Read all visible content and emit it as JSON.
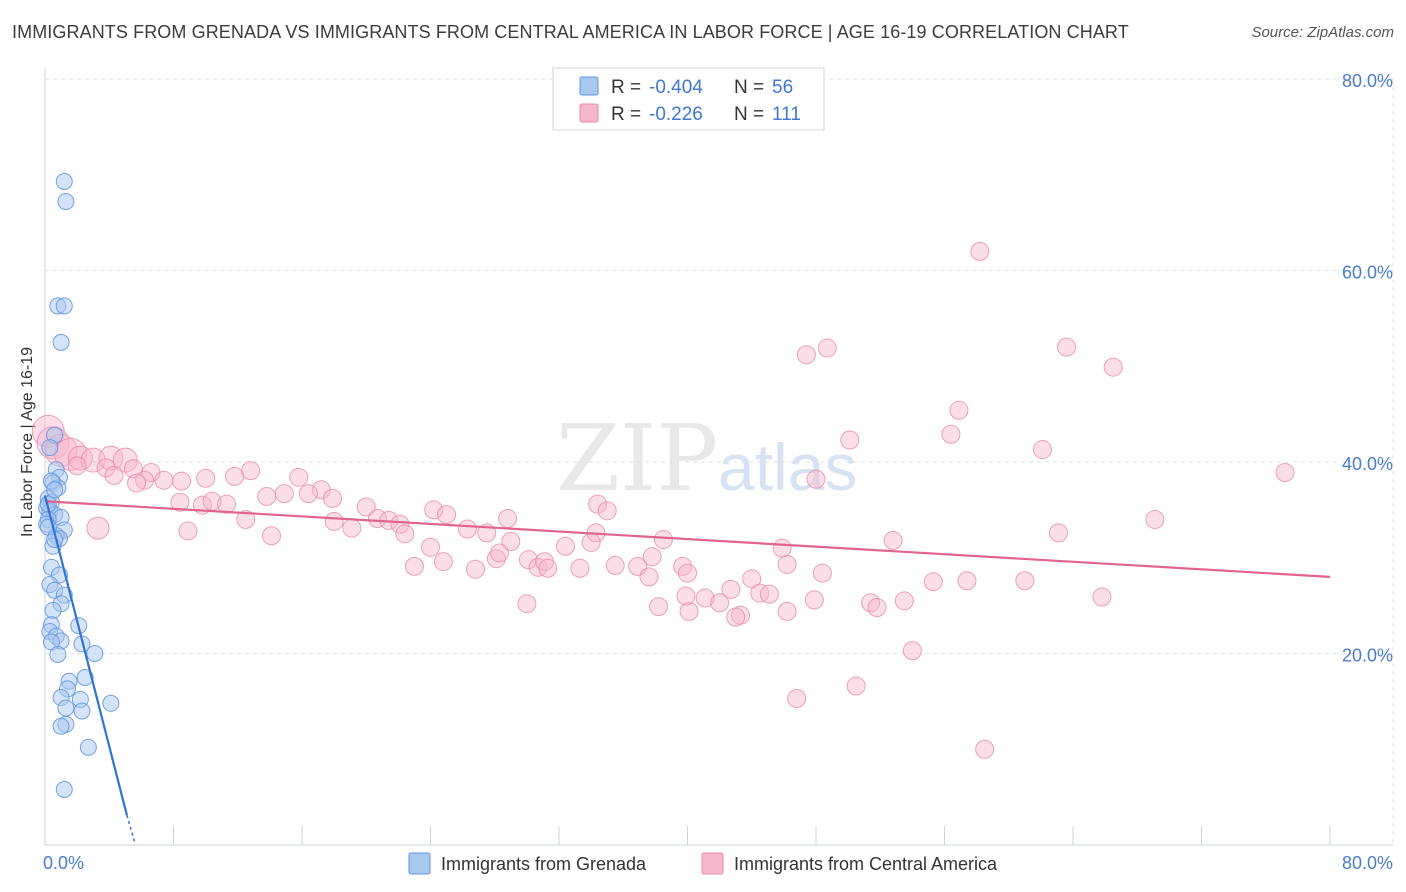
{
  "title": "IMMIGRANTS FROM GRENADA VS IMMIGRANTS FROM CENTRAL AMERICA IN LABOR FORCE | AGE 16-19 CORRELATION CHART",
  "source": "Source: ZipAtlas.com",
  "watermark": {
    "zip": "ZIP",
    "atlas": "atlas"
  },
  "colors": {
    "blue": "#a9c8f0",
    "blue_stroke": "#5d94dc",
    "blue_line": "#2f73d4",
    "pink": "#f6b6cb",
    "pink_stroke": "#e98aab",
    "pink_line": "#e0648f",
    "tick_text": "#4a7ccc",
    "grid": "#dde3ec"
  },
  "legend": {
    "items": [
      {
        "r_label": "R =",
        "r_value": "-0.404",
        "n_label": "N =",
        "n_value": "56"
      },
      {
        "r_label": "R =",
        "r_value": "-0.226",
        "n_label": "N =",
        "n_value": "111"
      }
    ]
  },
  "bottom_legend": [
    "Immigrants from Grenada",
    "Immigrants from Central America"
  ],
  "chart_data": {
    "type": "scatter",
    "title": "IMMIGRANTS FROM GRENADA VS IMMIGRANTS FROM CENTRAL AMERICA IN LABOR FORCE | AGE 16-19 CORRELATION CHART",
    "xlabel": "",
    "ylabel": "In Labor Force | Age 16-19",
    "xlim": [
      0,
      80
    ],
    "ylim": [
      0,
      80
    ],
    "x_tick_labels": [
      "0.0%",
      "80.0%"
    ],
    "y_ticks": [
      20,
      40,
      60,
      80
    ],
    "y_tick_labels": [
      "20.0%",
      "40.0%",
      "60.0%",
      "80.0%"
    ],
    "series": [
      {
        "name": "Immigrants from Grenada",
        "R": -0.404,
        "N": 56,
        "trend": {
          "x": [
            0,
            5.1
          ],
          "y": [
            36.5,
            3.1
          ],
          "dash_x": [
            5.1,
            5.6
          ],
          "dash_y": [
            3.1,
            0.2
          ]
        },
        "points": [
          [
            1.2,
            69.3
          ],
          [
            1.3,
            67.2
          ],
          [
            0.8,
            56.3
          ],
          [
            1.2,
            56.3
          ],
          [
            1.0,
            52.5
          ],
          [
            0.6,
            42.8
          ],
          [
            0.3,
            41.5
          ],
          [
            0.7,
            39.2
          ],
          [
            0.9,
            38.4
          ],
          [
            0.5,
            37.8
          ],
          [
            0.8,
            37.3
          ],
          [
            0.2,
            36.2
          ],
          [
            0.4,
            35.8
          ],
          [
            0.1,
            35.2
          ],
          [
            0.3,
            34.8
          ],
          [
            0.6,
            34.5
          ],
          [
            1.0,
            34.2
          ],
          [
            0.2,
            34.0
          ],
          [
            0.1,
            33.5
          ],
          [
            1.2,
            32.9
          ],
          [
            0.7,
            32.3
          ],
          [
            0.9,
            32.0
          ],
          [
            0.5,
            31.2
          ],
          [
            0.4,
            29.0
          ],
          [
            0.9,
            28.2
          ],
          [
            0.3,
            27.2
          ],
          [
            0.6,
            26.6
          ],
          [
            1.2,
            26.1
          ],
          [
            1.0,
            25.2
          ],
          [
            0.5,
            24.5
          ],
          [
            0.4,
            23.0
          ],
          [
            2.1,
            22.9
          ],
          [
            0.3,
            22.3
          ],
          [
            0.7,
            21.8
          ],
          [
            1.0,
            21.3
          ],
          [
            0.4,
            21.2
          ],
          [
            2.3,
            21.0
          ],
          [
            0.8,
            19.9
          ],
          [
            3.1,
            20.0
          ],
          [
            2.5,
            17.5
          ],
          [
            1.5,
            17.1
          ],
          [
            1.4,
            16.3
          ],
          [
            1.0,
            15.4
          ],
          [
            2.2,
            15.2
          ],
          [
            4.1,
            14.8
          ],
          [
            1.3,
            14.3
          ],
          [
            2.3,
            14.0
          ],
          [
            1.3,
            12.6
          ],
          [
            1.0,
            12.4
          ],
          [
            2.7,
            10.2
          ],
          [
            1.2,
            5.8
          ],
          [
            0.2,
            35.6
          ],
          [
            0.4,
            38.0
          ],
          [
            0.6,
            37.1
          ],
          [
            0.2,
            33.2
          ],
          [
            0.6,
            31.9
          ]
        ]
      },
      {
        "name": "Immigrants from Central America",
        "R": -0.226,
        "N": 111,
        "trend": {
          "x": [
            0,
            80
          ],
          "y": [
            35.9,
            28.0
          ]
        },
        "points": [
          [
            0.2,
            43.2
          ],
          [
            0.5,
            42.0
          ],
          [
            1.0,
            41.2
          ],
          [
            1.6,
            40.8
          ],
          [
            2.2,
            40.4
          ],
          [
            3.0,
            40.2
          ],
          [
            4.1,
            40.4
          ],
          [
            5.0,
            40.2
          ],
          [
            2.0,
            39.6
          ],
          [
            3.8,
            39.4
          ],
          [
            5.5,
            39.3
          ],
          [
            6.6,
            38.9
          ],
          [
            4.3,
            38.6
          ],
          [
            6.2,
            38.1
          ],
          [
            5.7,
            37.8
          ],
          [
            7.4,
            38.1
          ],
          [
            8.5,
            38.0
          ],
          [
            10.0,
            38.3
          ],
          [
            11.8,
            38.5
          ],
          [
            12.8,
            39.1
          ],
          [
            15.8,
            38.4
          ],
          [
            17.2,
            37.1
          ],
          [
            14.9,
            36.7
          ],
          [
            13.8,
            36.4
          ],
          [
            8.4,
            35.8
          ],
          [
            9.8,
            35.5
          ],
          [
            10.4,
            35.9
          ],
          [
            11.3,
            35.6
          ],
          [
            16.4,
            36.7
          ],
          [
            17.9,
            36.2
          ],
          [
            18.0,
            33.8
          ],
          [
            12.5,
            34.0
          ],
          [
            14.1,
            32.3
          ],
          [
            8.9,
            32.8
          ],
          [
            20.0,
            35.3
          ],
          [
            19.1,
            33.1
          ],
          [
            20.7,
            34.1
          ],
          [
            21.4,
            33.9
          ],
          [
            22.1,
            33.5
          ],
          [
            22.4,
            32.5
          ],
          [
            24.2,
            35.0
          ],
          [
            25.0,
            34.5
          ],
          [
            26.3,
            33.0
          ],
          [
            24.0,
            31.1
          ],
          [
            27.5,
            32.6
          ],
          [
            28.8,
            34.1
          ],
          [
            29.0,
            31.7
          ],
          [
            23.0,
            29.1
          ],
          [
            24.8,
            29.6
          ],
          [
            26.8,
            28.8
          ],
          [
            28.1,
            29.9
          ],
          [
            28.3,
            30.5
          ],
          [
            30.1,
            29.8
          ],
          [
            30.7,
            29.0
          ],
          [
            31.1,
            29.6
          ],
          [
            31.3,
            28.9
          ],
          [
            32.4,
            31.2
          ],
          [
            33.3,
            28.9
          ],
          [
            34.3,
            32.6
          ],
          [
            34.4,
            35.6
          ],
          [
            35.0,
            34.9
          ],
          [
            30.0,
            25.2
          ],
          [
            34.0,
            31.6
          ],
          [
            35.5,
            29.2
          ],
          [
            36.9,
            29.1
          ],
          [
            37.6,
            28.0
          ],
          [
            37.8,
            30.1
          ],
          [
            38.5,
            31.9
          ],
          [
            39.7,
            29.1
          ],
          [
            40.1,
            24.4
          ],
          [
            39.9,
            26.0
          ],
          [
            40.0,
            28.4
          ],
          [
            38.2,
            24.9
          ],
          [
            41.1,
            25.8
          ],
          [
            42.0,
            25.3
          ],
          [
            42.7,
            26.7
          ],
          [
            43.3,
            24.0
          ],
          [
            44.0,
            27.8
          ],
          [
            44.5,
            26.3
          ],
          [
            43.0,
            23.8
          ],
          [
            45.1,
            26.2
          ],
          [
            45.9,
            31.0
          ],
          [
            46.2,
            29.3
          ],
          [
            47.9,
            25.6
          ],
          [
            48.4,
            28.4
          ],
          [
            47.4,
            51.2
          ],
          [
            48.7,
            51.9
          ],
          [
            48.0,
            38.2
          ],
          [
            50.1,
            42.3
          ],
          [
            51.4,
            25.3
          ],
          [
            51.8,
            24.8
          ],
          [
            52.8,
            31.8
          ],
          [
            53.5,
            25.5
          ],
          [
            54.0,
            20.3
          ],
          [
            55.3,
            27.5
          ],
          [
            56.4,
            42.9
          ],
          [
            56.9,
            45.4
          ],
          [
            57.4,
            27.6
          ],
          [
            58.2,
            62.0
          ],
          [
            61.0,
            27.6
          ],
          [
            62.1,
            41.3
          ],
          [
            63.1,
            32.6
          ],
          [
            63.6,
            52.0
          ],
          [
            66.5,
            49.9
          ],
          [
            65.8,
            25.9
          ],
          [
            69.1,
            34.0
          ],
          [
            77.2,
            38.9
          ],
          [
            46.2,
            24.4
          ],
          [
            46.8,
            15.3
          ],
          [
            50.5,
            16.6
          ],
          [
            58.5,
            10.0
          ]
        ]
      }
    ]
  }
}
